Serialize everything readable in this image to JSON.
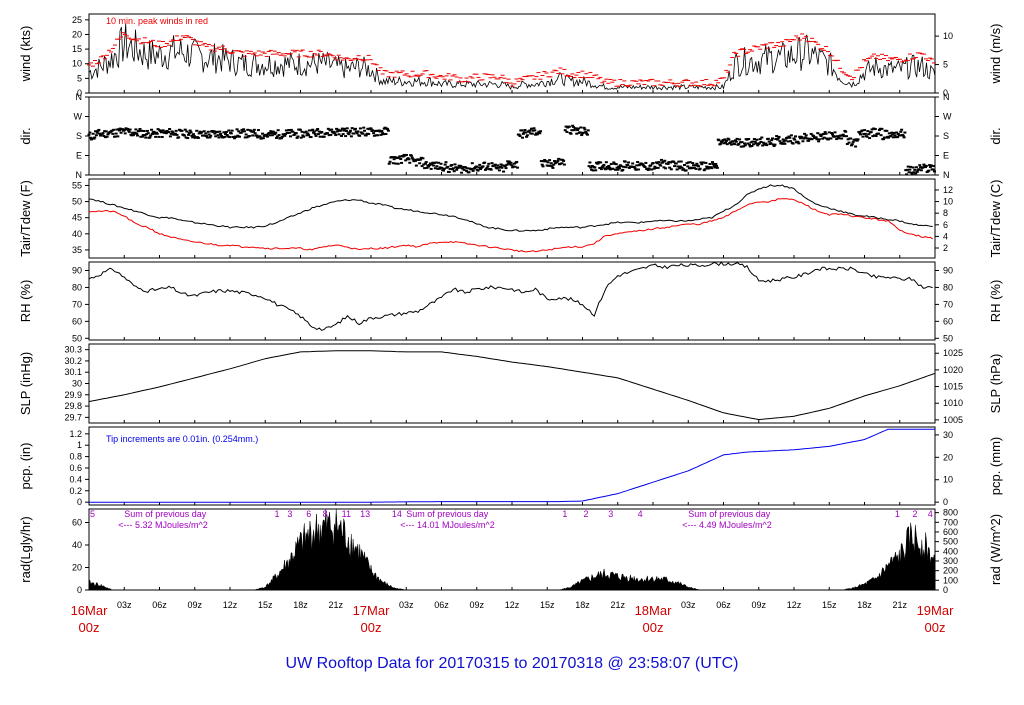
{
  "footer": {
    "title": "UW Rooftop Data for 20170315  to  20170318 @ 23:58:07  (UTC)"
  },
  "colors": {
    "black": "#000000",
    "red": "#ee0000",
    "blue": "#0000ee",
    "purple": "#a000c0",
    "footer": "#1010d0"
  },
  "x_axis": {
    "hour_labels": [
      "03z",
      "06z",
      "09z",
      "12z",
      "15z",
      "18z",
      "21z",
      "",
      "03z",
      "06z",
      "09z",
      "12z",
      "15z",
      "18z",
      "21z",
      "",
      "03z",
      "06z",
      "09z",
      "12z",
      "15z",
      "18z",
      "21z"
    ],
    "day_labels": [
      {
        "hour": 0,
        "line1": "16Mar",
        "line2": "00z"
      },
      {
        "hour": 24,
        "line1": "17Mar",
        "line2": "00z"
      },
      {
        "hour": 48,
        "line1": "18Mar",
        "line2": "00z"
      },
      {
        "hour": 72,
        "line1": "19Mar",
        "line2": "00z"
      }
    ]
  },
  "chart_data": [
    {
      "type": "line",
      "name": "wind",
      "ylabel_left": "wind (kts)",
      "ylabel_right": "wind (m/s)",
      "yticks_left": [
        0,
        5,
        10,
        15,
        20,
        25
      ],
      "yticks_right": [
        0,
        5,
        10
      ],
      "ylim": [
        0,
        27
      ],
      "annotation": "10 min. peak winds in red",
      "x_hours": [
        0,
        1,
        2,
        3,
        4,
        5,
        6,
        7,
        8,
        9,
        10,
        11,
        12,
        13,
        14,
        15,
        16,
        17,
        18,
        19,
        20,
        21,
        22,
        23,
        24,
        25,
        26,
        27,
        28,
        29,
        30,
        31,
        32,
        33,
        34,
        35,
        36,
        37,
        38,
        39,
        40,
        41,
        42,
        43,
        44,
        45,
        46,
        47,
        48,
        49,
        50,
        51,
        52,
        53,
        54,
        55,
        56,
        57,
        58,
        59,
        60,
        61,
        62,
        63,
        64,
        65,
        66,
        67,
        68,
        69,
        70,
        71,
        72
      ],
      "series": [
        {
          "name": "mean wind (kts)",
          "values": [
            7,
            9,
            12,
            17,
            15,
            13,
            13,
            14,
            14,
            13,
            12,
            12,
            11,
            10,
            10,
            10,
            10,
            10,
            10,
            10,
            10,
            9,
            8,
            9,
            8,
            4,
            4,
            4,
            4,
            4,
            3,
            3,
            3,
            3,
            3,
            3,
            2,
            3,
            3,
            4,
            5,
            4,
            4,
            3,
            2,
            2,
            2,
            2,
            2,
            2,
            2,
            2,
            2,
            2,
            2,
            10,
            11,
            11,
            12,
            12,
            13,
            14,
            12,
            10,
            5,
            3,
            7,
            9,
            8,
            8,
            9,
            9,
            6
          ]
        },
        {
          "name": "10 min peak (kts)",
          "values": [
            9,
            11,
            15,
            20,
            18,
            17,
            16,
            17,
            19,
            17,
            15,
            15,
            14,
            13,
            13,
            13,
            13,
            13,
            13,
            13,
            13,
            12,
            11,
            12,
            11,
            6,
            6,
            6,
            6,
            6,
            5,
            5,
            4,
            5,
            5,
            5,
            3,
            4,
            5,
            6,
            7,
            6,
            6,
            5,
            3,
            3,
            3,
            3,
            3,
            3,
            3,
            3,
            3,
            3,
            4,
            13,
            14,
            15,
            16,
            16,
            18,
            19,
            16,
            14,
            8,
            5,
            10,
            12,
            11,
            11,
            12,
            13,
            9
          ]
        }
      ]
    },
    {
      "type": "scatter",
      "name": "dir.",
      "ylabel_left": "dir.",
      "ylabel_right": "dir.",
      "ytick_labels": [
        "N",
        "E",
        "S",
        "W",
        "N"
      ],
      "ylim": [
        0,
        360
      ],
      "x_hours": [
        0,
        1,
        2,
        3,
        4,
        5,
        6,
        7,
        8,
        9,
        10,
        11,
        12,
        13,
        14,
        15,
        16,
        17,
        18,
        19,
        20,
        21,
        22,
        23,
        24,
        25,
        26,
        27,
        28,
        29,
        30,
        31,
        32,
        33,
        34,
        35,
        36,
        37,
        38,
        39,
        40,
        41,
        42,
        43,
        44,
        45,
        46,
        47,
        48,
        49,
        50,
        51,
        52,
        53,
        54,
        55,
        56,
        57,
        58,
        59,
        60,
        61,
        62,
        63,
        64,
        65,
        66,
        67,
        68,
        69,
        70,
        71,
        72
      ],
      "values": [
        180,
        190,
        195,
        200,
        195,
        190,
        192,
        195,
        190,
        188,
        186,
        190,
        188,
        192,
        190,
        185,
        188,
        190,
        190,
        195,
        196,
        200,
        198,
        200,
        198,
        200,
        70,
        75,
        60,
        45,
        40,
        30,
        30,
        35,
        40,
        30,
        50,
        190,
        200,
        50,
        60,
        210,
        200,
        40,
        45,
        40,
        45,
        40,
        40,
        50,
        45,
        40,
        40,
        40,
        150,
        150,
        150,
        155,
        150,
        160,
        165,
        170,
        175,
        180,
        185,
        150,
        190,
        195,
        185,
        190,
        20,
        30,
        35
      ]
    },
    {
      "type": "line",
      "name": "Tair/Tdew",
      "ylabel_left": "Tair/Tdew (F)",
      "ylabel_right": "Tair/Tdew (C)",
      "yticks_left": [
        35,
        40,
        45,
        50,
        55
      ],
      "yticks_right": [
        2,
        4,
        6,
        8,
        10,
        12
      ],
      "ylim": [
        32.5,
        57
      ],
      "x_hours": [
        0,
        1,
        2,
        3,
        4,
        5,
        6,
        7,
        8,
        9,
        10,
        11,
        12,
        13,
        14,
        15,
        16,
        17,
        18,
        19,
        20,
        21,
        22,
        23,
        24,
        25,
        26,
        27,
        28,
        29,
        30,
        31,
        32,
        33,
        34,
        35,
        36,
        37,
        38,
        39,
        40,
        41,
        42,
        43,
        44,
        45,
        46,
        47,
        48,
        49,
        50,
        51,
        52,
        53,
        54,
        55,
        56,
        57,
        58,
        59,
        60,
        61,
        62,
        63,
        64,
        65,
        66,
        67,
        68,
        69,
        70,
        71,
        72
      ],
      "series": [
        {
          "name": "Tair (F)",
          "values": [
            51,
            50,
            49,
            48,
            47,
            46,
            45,
            45,
            44,
            43.5,
            43,
            42.5,
            42,
            42,
            42,
            42.5,
            43.5,
            45,
            46.5,
            48,
            49,
            50,
            50.5,
            50.5,
            49.5,
            49,
            48,
            47.5,
            47,
            46.5,
            46,
            45.5,
            44.5,
            43,
            42,
            41.5,
            41,
            41,
            41,
            41.5,
            42,
            42,
            42,
            42.5,
            43,
            43.5,
            43.5,
            43.5,
            44,
            44,
            44,
            44,
            44.5,
            45,
            47,
            49,
            52,
            54,
            55,
            55,
            54,
            51,
            49,
            48,
            47,
            46,
            45.5,
            45,
            44.5,
            44,
            43,
            42.5,
            42.5
          ]
        },
        {
          "name": "Tdew (F)",
          "values": [
            47,
            47,
            47,
            45.5,
            43,
            42,
            40,
            39,
            38,
            37.5,
            37,
            36.5,
            36.5,
            36,
            36,
            35.5,
            35.5,
            35.5,
            35.5,
            35,
            36,
            36.5,
            36,
            35,
            35.5,
            35.5,
            36,
            36.5,
            36,
            37,
            37.5,
            37.5,
            37,
            36.5,
            36,
            35.5,
            35,
            34.5,
            34.5,
            35,
            35.5,
            36,
            36,
            37,
            39.5,
            40,
            40.5,
            41,
            41.5,
            42,
            42.5,
            43,
            43,
            44,
            45,
            47,
            49,
            50,
            50,
            51,
            50.5,
            49,
            47,
            46,
            46,
            45.5,
            45,
            44.5,
            44,
            41,
            40,
            39,
            38.5
          ]
        }
      ]
    },
    {
      "type": "line",
      "name": "RH",
      "ylabel_left": "RH (%)",
      "ylabel_right": "RH (%)",
      "yticks_left": [
        50,
        60,
        70,
        80,
        90
      ],
      "yticks_right": [
        50,
        60,
        70,
        80,
        90
      ],
      "ylim": [
        49,
        95
      ],
      "x_hours": [
        0,
        1,
        2,
        3,
        4,
        5,
        6,
        7,
        8,
        9,
        10,
        11,
        12,
        13,
        14,
        15,
        16,
        17,
        18,
        19,
        20,
        21,
        22,
        23,
        24,
        25,
        26,
        27,
        28,
        29,
        30,
        31,
        32,
        33,
        34,
        35,
        36,
        37,
        38,
        39,
        40,
        41,
        42,
        43,
        44,
        45,
        46,
        47,
        48,
        49,
        50,
        51,
        52,
        53,
        54,
        55,
        56,
        57,
        58,
        59,
        60,
        61,
        62,
        63,
        64,
        65,
        66,
        67,
        68,
        69,
        70,
        71,
        72
      ],
      "values": [
        85,
        88,
        91,
        86,
        80,
        78,
        79,
        80,
        76,
        75,
        77,
        78,
        78,
        77,
        76,
        74,
        70,
        67,
        63,
        57,
        55,
        58,
        63,
        59,
        62,
        63,
        64,
        65,
        66,
        70,
        74,
        79,
        77,
        79,
        80,
        80,
        79,
        77,
        79,
        73,
        74,
        73,
        70,
        64,
        80,
        87,
        89,
        91,
        93,
        92,
        93,
        93,
        93,
        94,
        94,
        94,
        92,
        84,
        84,
        85,
        86,
        88,
        91,
        91,
        91,
        91,
        88,
        86,
        86,
        85,
        85,
        80,
        80
      ]
    },
    {
      "type": "line",
      "name": "SLP",
      "ylabel_left": "SLP (inHg)",
      "ylabel_right": "SLP (hPa)",
      "yticks_left": [
        29.7,
        29.8,
        29.9,
        30.0,
        30.1,
        30.2,
        30.3
      ],
      "yticks_right": [
        1005,
        1010,
        1015,
        1020,
        1025
      ],
      "ylim": [
        29.65,
        30.35
      ],
      "x_hours": [
        0,
        3,
        6,
        9,
        12,
        15,
        18,
        21,
        24,
        27,
        30,
        33,
        36,
        39,
        42,
        45,
        48,
        51,
        54,
        57,
        60,
        63,
        66,
        69,
        72
      ],
      "values": [
        29.84,
        29.9,
        29.97,
        30.05,
        30.13,
        30.22,
        30.28,
        30.29,
        30.29,
        30.28,
        30.28,
        30.24,
        30.19,
        30.15,
        30.1,
        30.05,
        29.95,
        29.85,
        29.74,
        29.68,
        29.71,
        29.78,
        29.89,
        29.98,
        30.09
      ]
    },
    {
      "type": "line",
      "name": "pcp.",
      "ylabel_left": "pcp. (in)",
      "ylabel_right": "pcp. (mm)",
      "yticks_left": [
        0,
        0.2,
        0.4,
        0.6,
        0.8,
        1.0,
        1.2
      ],
      "yticks_right": [
        0,
        10,
        20,
        30
      ],
      "ylim": [
        -0.05,
        1.32
      ],
      "annotation": "Tip increments are 0.01in. (0.254mm.)",
      "x_hours": [
        0,
        24,
        30,
        36,
        40,
        42,
        45,
        48,
        51,
        54,
        56,
        60,
        63,
        66,
        68,
        72
      ],
      "values": [
        0,
        0,
        0.01,
        0.01,
        0.01,
        0.02,
        0.15,
        0.35,
        0.55,
        0.83,
        0.88,
        0.92,
        0.98,
        1.1,
        1.28,
        1.28
      ]
    },
    {
      "type": "area",
      "name": "rad",
      "ylabel_left": "rad(Lgly/hr)",
      "ylabel_right": "rad (W/m^2)",
      "yticks_left": [
        0,
        20,
        40,
        60
      ],
      "yticks_right": [
        0,
        100,
        200,
        300,
        400,
        500,
        600,
        700,
        800
      ],
      "ylim": [
        0,
        72
      ],
      "x_hours": [
        0,
        1,
        2,
        3,
        4,
        5,
        6,
        7,
        8,
        9,
        10,
        11,
        12,
        13,
        14,
        15,
        16,
        17,
        18,
        19,
        20,
        21,
        22,
        23,
        24,
        25,
        26,
        27,
        28,
        29,
        30,
        31,
        32,
        33,
        34,
        35,
        36,
        37,
        38,
        39,
        40,
        41,
        42,
        43,
        44,
        45,
        46,
        47,
        48,
        49,
        50,
        51,
        52,
        53,
        54,
        55,
        56,
        57,
        58,
        59,
        60,
        61,
        62,
        63,
        64,
        65,
        66,
        67,
        68,
        69,
        70,
        71,
        72
      ],
      "values": [
        8,
        5,
        0,
        0,
        0,
        0,
        0,
        0,
        0,
        0,
        0,
        0,
        0,
        0,
        0,
        3,
        15,
        30,
        48,
        60,
        65,
        68,
        55,
        40,
        20,
        8,
        2,
        0,
        0,
        0,
        0,
        0,
        0,
        0,
        0,
        0,
        0,
        0,
        0,
        0,
        0,
        3,
        9,
        14,
        17,
        14,
        13,
        11,
        12,
        11,
        8,
        3,
        0,
        0,
        0,
        0,
        0,
        0,
        0,
        0,
        0,
        0,
        0,
        0,
        0,
        2,
        6,
        12,
        25,
        35,
        55,
        48,
        30
      ],
      "annotations": [
        {
          "label": "Sum of previous day",
          "value": "<--- 5.32 MJoules/m^2",
          "hour": 3
        },
        {
          "label": "Sum of previous day",
          "value": "<--- 14.01 MJoules/m^2",
          "hour": 27
        },
        {
          "label": "Sum of previous day",
          "value": "<--- 4.49 MJoules/m^2",
          "hour": 51
        }
      ],
      "tick_numbers": [
        {
          "hour": 0.3,
          "text": "5"
        },
        {
          "hour": 16,
          "text": "1"
        },
        {
          "hour": 17.1,
          "text": "3"
        },
        {
          "hour": 18.7,
          "text": "6"
        },
        {
          "hour": 20.1,
          "text": "8"
        },
        {
          "hour": 21.9,
          "text": "11"
        },
        {
          "hour": 23.5,
          "text": "13"
        },
        {
          "hour": 26.2,
          "text": "14"
        },
        {
          "hour": 40.5,
          "text": "1"
        },
        {
          "hour": 42.3,
          "text": "2"
        },
        {
          "hour": 44.4,
          "text": "3"
        },
        {
          "hour": 46.9,
          "text": "4"
        },
        {
          "hour": 68.8,
          "text": "1"
        },
        {
          "hour": 70.3,
          "text": "2"
        },
        {
          "hour": 71.6,
          "text": "4"
        }
      ]
    }
  ]
}
